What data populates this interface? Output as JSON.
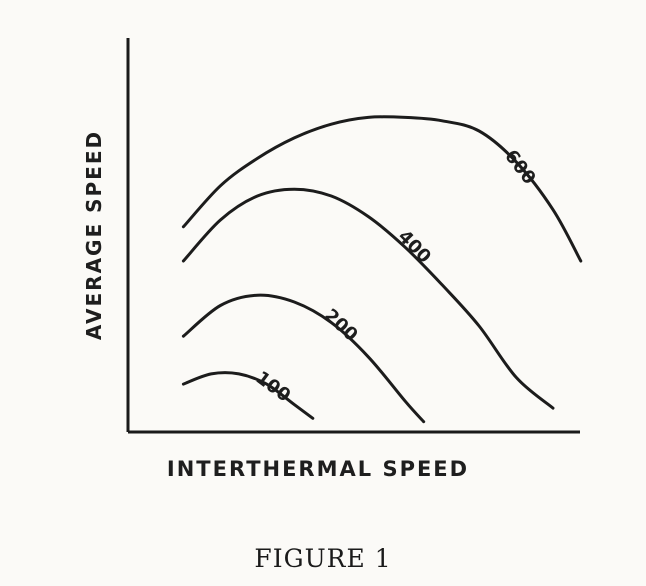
{
  "caption": "FIGURE 1",
  "chart_data": {
    "type": "line",
    "xlabel": "INTERTHERMAL SPEED",
    "ylabel": "AVERAGE SPEED",
    "xlim": [
      0,
      100
    ],
    "ylim": [
      0,
      100
    ],
    "grid": false,
    "legend": "none",
    "series": [
      {
        "name": "100",
        "x": [
          12,
          18,
          24,
          30,
          36,
          40
        ],
        "y": [
          14,
          17,
          17,
          14,
          8,
          4
        ]
      },
      {
        "name": "200",
        "x": [
          12,
          20,
          28,
          36,
          44,
          52,
          60,
          64
        ],
        "y": [
          28,
          37,
          40,
          38,
          32,
          22,
          9,
          3
        ]
      },
      {
        "name": "400",
        "x": [
          12,
          20,
          28,
          36,
          44,
          52,
          60,
          68,
          76,
          84,
          92
        ],
        "y": [
          50,
          62,
          69,
          71,
          69,
          63,
          54,
          43,
          31,
          16,
          7
        ]
      },
      {
        "name": "600",
        "x": [
          12,
          20,
          28,
          36,
          44,
          52,
          60,
          68,
          76,
          84,
          92,
          98
        ],
        "y": [
          60,
          72,
          80,
          86,
          90,
          92,
          92,
          91,
          88,
          79,
          65,
          50
        ]
      }
    ]
  }
}
